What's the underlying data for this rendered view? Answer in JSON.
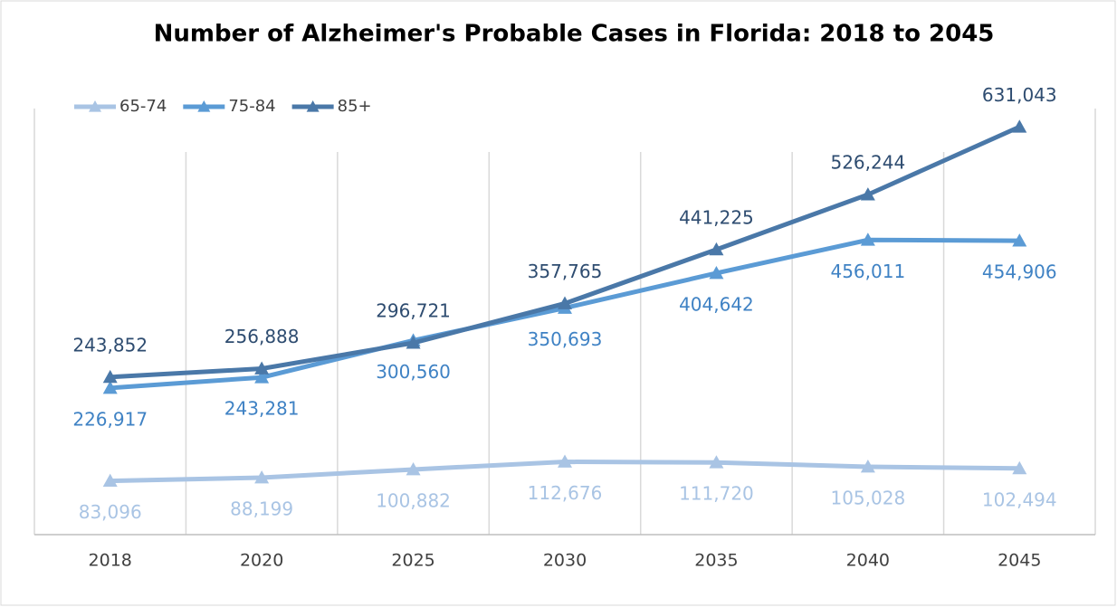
{
  "chart_data": {
    "type": "line",
    "title": "Number of Alzheimer's Probable Cases in Florida: 2018 to 2045",
    "categories": [
      "2018",
      "2020",
      "2025",
      "2030",
      "2035",
      "2040",
      "2045"
    ],
    "series": [
      {
        "name": "65-74",
        "color": "#a9c4e4",
        "label_color": "#a9c4e4",
        "values": [
          83096,
          88199,
          100882,
          112676,
          111720,
          105028,
          102494
        ],
        "value_labels": [
          "83,096",
          "88,199",
          "100,882",
          "112,676",
          "111,720",
          "105,028",
          "102,494"
        ]
      },
      {
        "name": "75-84",
        "color": "#5b9bd5",
        "label_color": "#3f82c4",
        "values": [
          226917,
          243281,
          300560,
          350693,
          404642,
          456011,
          454906
        ],
        "value_labels": [
          "226,917",
          "243,281",
          "300,560",
          "350,693",
          "404,642",
          "456,011",
          "454,906"
        ]
      },
      {
        "name": "85+",
        "color": "#4a78a8",
        "label_color": "#2e4c70",
        "values": [
          243852,
          256888,
          296721,
          357765,
          441225,
          526244,
          631043
        ],
        "value_labels": [
          "243,852",
          "256,888",
          "296,721",
          "357,765",
          "441,225",
          "526,244",
          "631,043"
        ]
      }
    ],
    "ylim": [
      0,
      700000
    ],
    "grid": true,
    "legend": "top-left"
  }
}
